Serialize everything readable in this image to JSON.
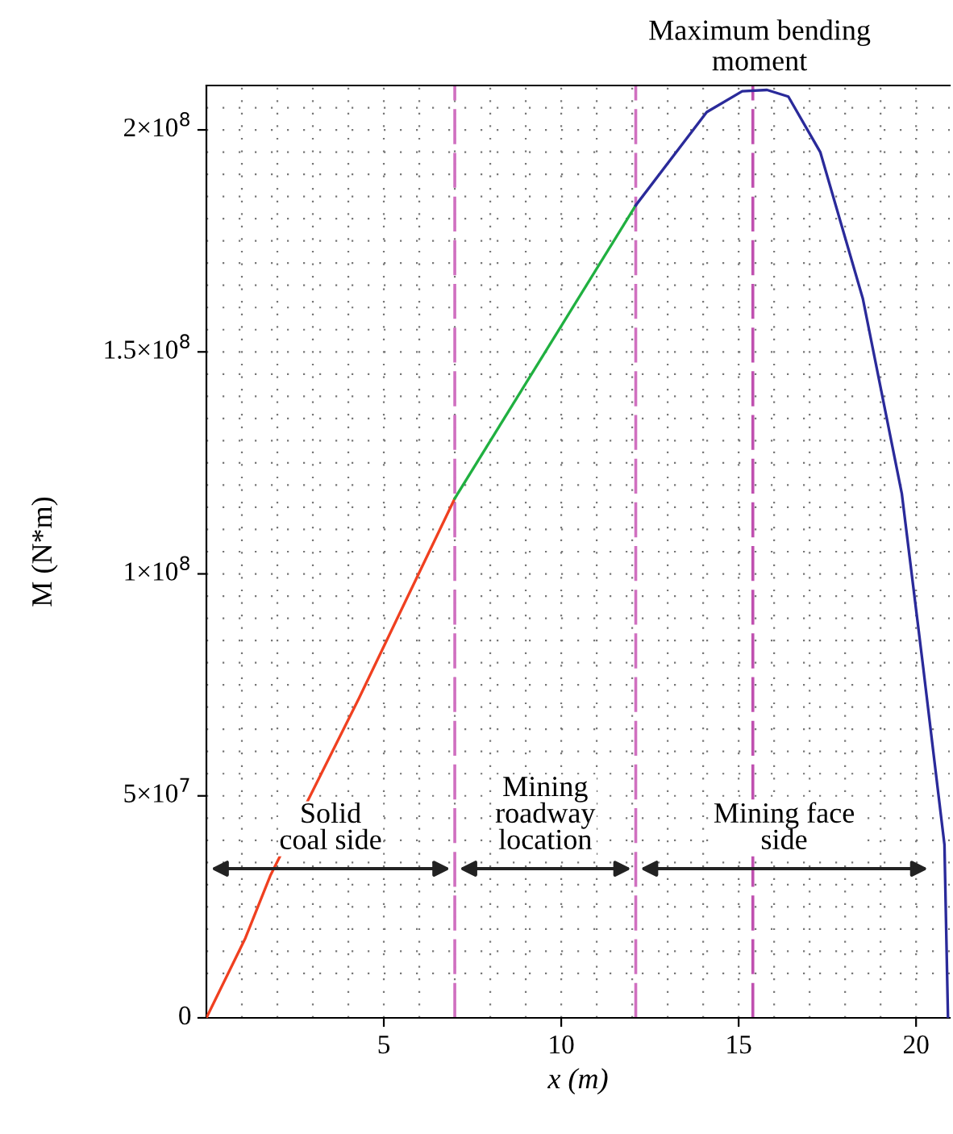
{
  "chart_data": {
    "type": "line",
    "xlabel": "x (m)",
    "ylabel": "M (N*m)",
    "xlim": [
      0,
      20.95
    ],
    "ylim": [
      0,
      210000000
    ],
    "xticks": [
      5,
      10,
      15,
      20
    ],
    "yticks": [
      0,
      {
        "value": 50000000,
        "label": "5×10$^{7}$"
      },
      {
        "value": 100000000,
        "label": "1×10$^{8}$"
      },
      {
        "value": 150000000,
        "label": "1.5×10$^{8}$"
      },
      {
        "value": 200000000,
        "label": "2×10$^{8}$"
      }
    ],
    "grid": true,
    "line_style": "solid",
    "marker": "none",
    "series": [
      {
        "color": "#f04020",
        "x": [
          0,
          1.1,
          1.8,
          4.3,
          7.0
        ],
        "values": [
          0,
          18000000,
          32000000,
          72000000,
          117000000
        ]
      },
      {
        "color": "#20b040",
        "x": [
          7.0,
          12.1
        ],
        "values": [
          117000000,
          183000000
        ]
      },
      {
        "color": "#2a2a9a",
        "x": [
          12.1,
          14.1,
          15.1,
          15.8,
          16.4,
          17.3,
          18.5,
          19.6,
          20.2,
          20.8,
          20.9
        ],
        "values": [
          183000000,
          204000000,
          208700000,
          209000000,
          207500000,
          195000000,
          162000000,
          118000000,
          79000000,
          39000000,
          0
        ]
      }
    ],
    "ref_lines": [
      {
        "axis": "x",
        "value": 7.0,
        "color": "#d070c0",
        "line_style": "dashed"
      },
      {
        "axis": "x",
        "value": 12.1,
        "color": "#d070c0",
        "line_style": "dashed"
      },
      {
        "axis": "x",
        "value": 15.4,
        "color": "#c050b0",
        "line_style": "dashed"
      }
    ],
    "annotations": [
      {
        "text": "Maximum bending\nmoment",
        "x": 15.4,
        "y": 209000000
      },
      "Solid\ncoal side",
      "Mining\nroadway\nlocation",
      "Mining face\nside"
    ]
  }
}
